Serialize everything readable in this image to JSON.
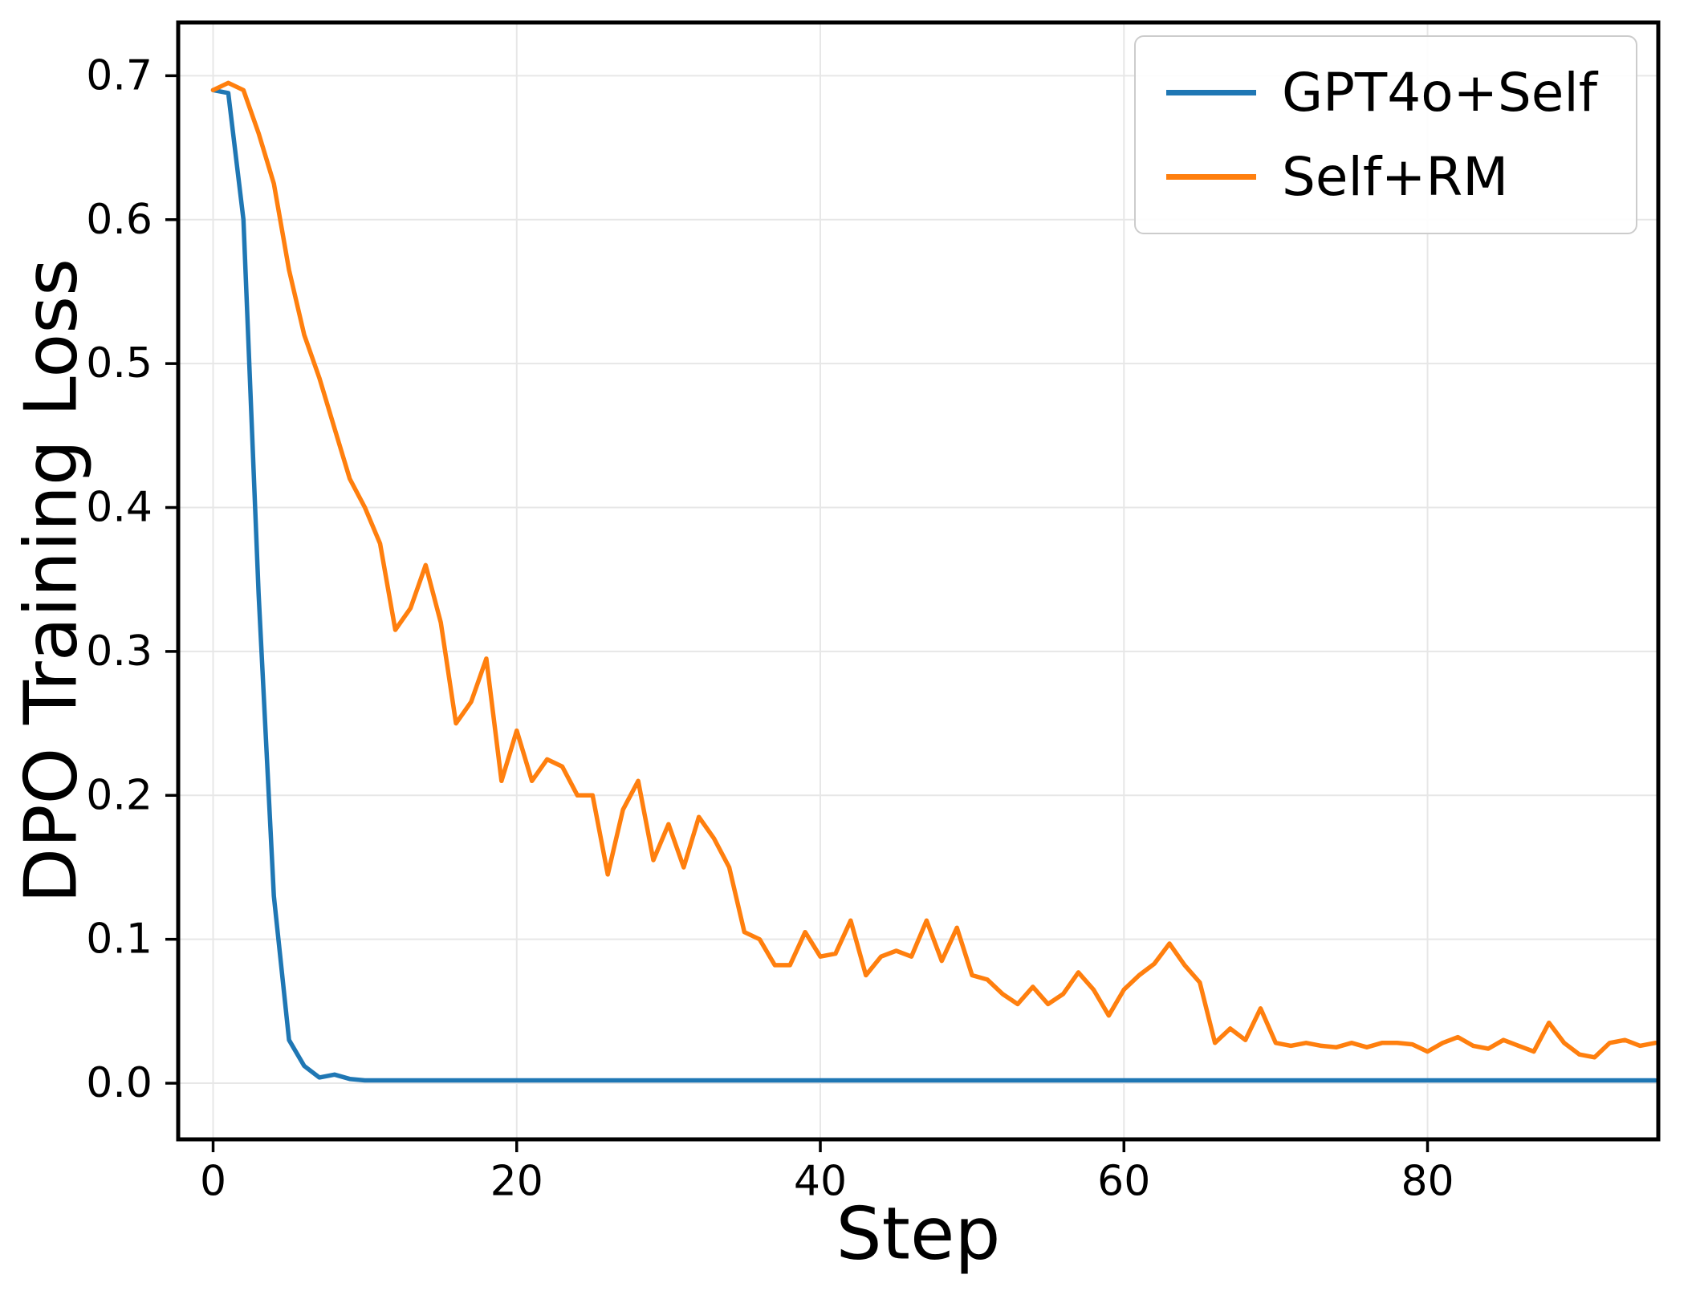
{
  "chart_data": {
    "type": "line",
    "title": "",
    "xlabel": "Step",
    "ylabel": "DPO Training Loss",
    "xlim": [
      -2.3,
      95.2
    ],
    "ylim": [
      -0.039,
      0.737
    ],
    "xticks": {
      "values": [
        0,
        20,
        40,
        60,
        80
      ],
      "labels": [
        "0",
        "20",
        "40",
        "60",
        "80"
      ]
    },
    "yticks": {
      "values": [
        0.0,
        0.1,
        0.2,
        0.3,
        0.4,
        0.5,
        0.6,
        0.7
      ],
      "labels": [
        "0.0",
        "0.1",
        "0.2",
        "0.3",
        "0.4",
        "0.5",
        "0.6",
        "0.7"
      ]
    },
    "grid": true,
    "grid_color": "#e7e7e7",
    "frame_color": "#000000",
    "legend_position": "upper-right",
    "series": [
      {
        "name": "GPT4o+Self",
        "color": "#1f77b4",
        "x": [
          0,
          1,
          2,
          3,
          4,
          5,
          6,
          7,
          8,
          9,
          10,
          15,
          20,
          30,
          40,
          50,
          60,
          70,
          80,
          90,
          95
        ],
        "y": [
          0.69,
          0.688,
          0.6,
          0.34,
          0.13,
          0.03,
          0.012,
          0.004,
          0.006,
          0.003,
          0.002,
          0.002,
          0.002,
          0.002,
          0.002,
          0.002,
          0.002,
          0.002,
          0.002,
          0.002,
          0.002
        ]
      },
      {
        "name": "Self+RM",
        "color": "#ff7f0e",
        "x_mode": "index",
        "y": [
          0.69,
          0.695,
          0.69,
          0.66,
          0.625,
          0.565,
          0.52,
          0.49,
          0.455,
          0.42,
          0.4,
          0.375,
          0.315,
          0.33,
          0.36,
          0.32,
          0.25,
          0.265,
          0.295,
          0.21,
          0.245,
          0.21,
          0.225,
          0.22,
          0.2,
          0.2,
          0.145,
          0.19,
          0.21,
          0.155,
          0.18,
          0.15,
          0.185,
          0.17,
          0.15,
          0.105,
          0.1,
          0.082,
          0.082,
          0.105,
          0.088,
          0.09,
          0.113,
          0.075,
          0.088,
          0.092,
          0.088,
          0.113,
          0.085,
          0.108,
          0.075,
          0.072,
          0.062,
          0.055,
          0.067,
          0.055,
          0.062,
          0.077,
          0.065,
          0.047,
          0.065,
          0.075,
          0.083,
          0.097,
          0.082,
          0.07,
          0.028,
          0.038,
          0.03,
          0.052,
          0.028,
          0.026,
          0.028,
          0.026,
          0.025,
          0.028,
          0.025,
          0.028,
          0.028,
          0.027,
          0.022,
          0.028,
          0.032,
          0.026,
          0.024,
          0.03,
          0.026,
          0.022,
          0.042,
          0.028,
          0.02,
          0.018,
          0.028,
          0.03,
          0.026,
          0.028
        ]
      }
    ]
  }
}
